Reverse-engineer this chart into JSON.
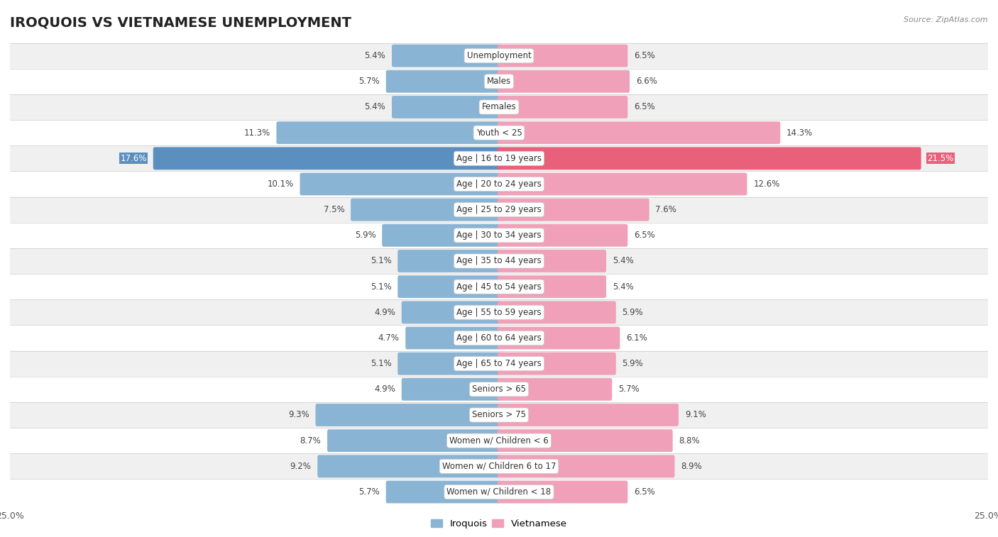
{
  "title": "IROQUOIS VS VIETNAMESE UNEMPLOYMENT",
  "source": "Source: ZipAtlas.com",
  "categories": [
    "Unemployment",
    "Males",
    "Females",
    "Youth < 25",
    "Age | 16 to 19 years",
    "Age | 20 to 24 years",
    "Age | 25 to 29 years",
    "Age | 30 to 34 years",
    "Age | 35 to 44 years",
    "Age | 45 to 54 years",
    "Age | 55 to 59 years",
    "Age | 60 to 64 years",
    "Age | 65 to 74 years",
    "Seniors > 65",
    "Seniors > 75",
    "Women w/ Children < 6",
    "Women w/ Children 6 to 17",
    "Women w/ Children < 18"
  ],
  "iroquois": [
    5.4,
    5.7,
    5.4,
    11.3,
    17.6,
    10.1,
    7.5,
    5.9,
    5.1,
    5.1,
    4.9,
    4.7,
    5.1,
    4.9,
    9.3,
    8.7,
    9.2,
    5.7
  ],
  "vietnamese": [
    6.5,
    6.6,
    6.5,
    14.3,
    21.5,
    12.6,
    7.6,
    6.5,
    5.4,
    5.4,
    5.9,
    6.1,
    5.9,
    5.7,
    9.1,
    8.8,
    8.9,
    6.5
  ],
  "iroquois_color": "#8ab4d4",
  "vietnamese_color": "#f0a0b8",
  "iroquois_highlight_color": "#5a8fc0",
  "vietnamese_highlight_color": "#e8607a",
  "row_bg_odd": "#f0f0f0",
  "row_bg_even": "#ffffff",
  "xlim": 25.0,
  "bar_height": 0.72,
  "legend_labels": [
    "Iroquois",
    "Vietnamese"
  ],
  "title_fontsize": 14,
  "label_fontsize": 8.5,
  "cat_fontsize": 8.5,
  "highlight_idx": 4
}
